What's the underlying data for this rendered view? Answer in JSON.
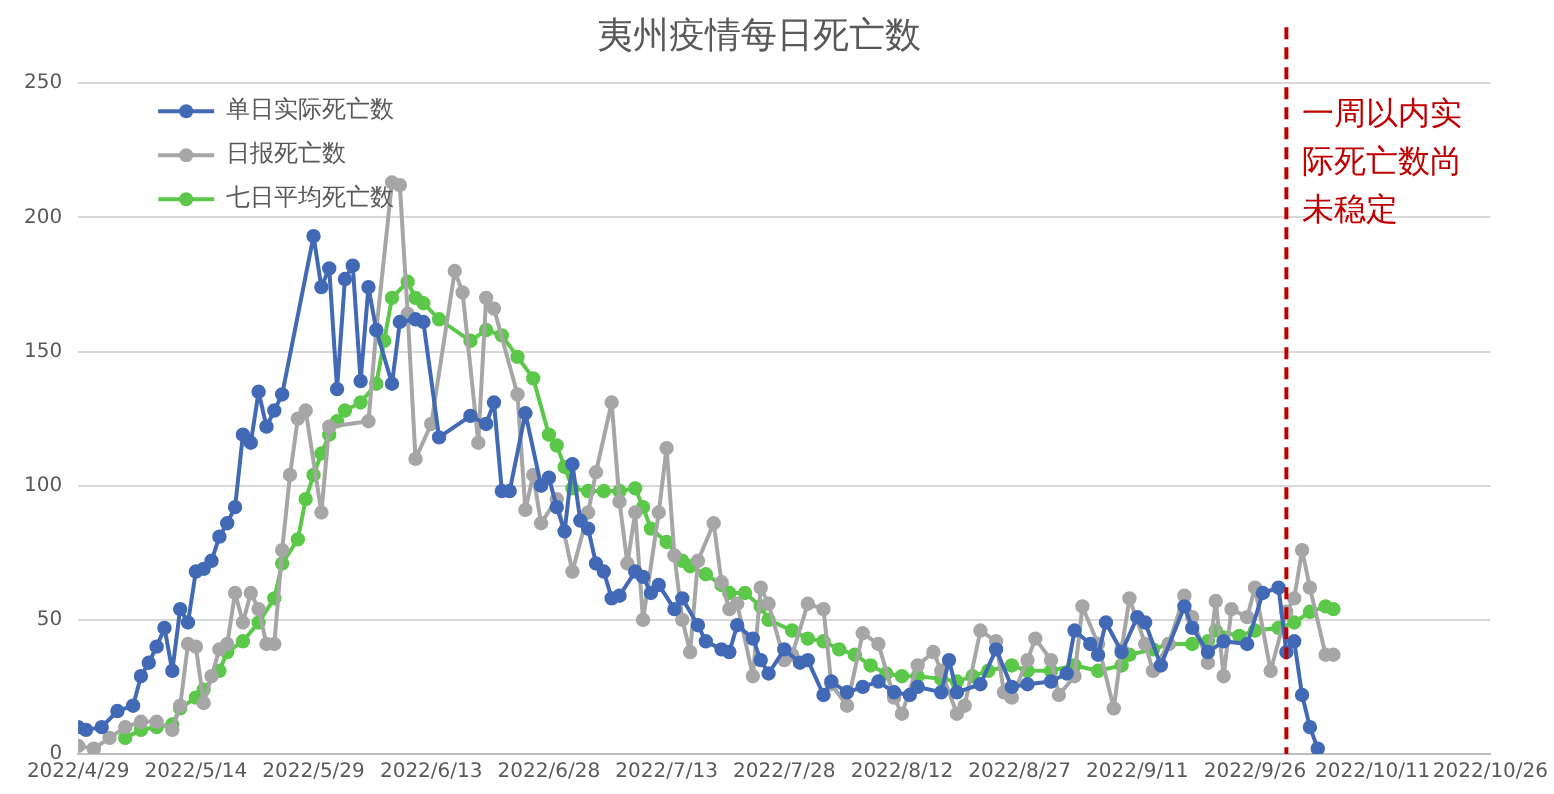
{
  "chart_data": {
    "type": "line",
    "title": "夷州疫情每日死亡数",
    "xlim": [
      "2022-04-29",
      "2022-10-26"
    ],
    "xticks": [
      {
        "value": "2022-04-29",
        "label": "2022/4/29"
      },
      {
        "value": "2022-05-14",
        "label": "2022/5/14"
      },
      {
        "value": "2022-05-29",
        "label": "2022/5/29"
      },
      {
        "value": "2022-06-13",
        "label": "2022/6/13"
      },
      {
        "value": "2022-06-28",
        "label": "2022/6/28"
      },
      {
        "value": "2022-07-13",
        "label": "2022/7/13"
      },
      {
        "value": "2022-07-28",
        "label": "2022/7/28"
      },
      {
        "value": "2022-08-12",
        "label": "2022/8/12"
      },
      {
        "value": "2022-08-27",
        "label": "2022/8/27"
      },
      {
        "value": "2022-09-11",
        "label": "2022/9/11"
      },
      {
        "value": "2022-09-26",
        "label": "2022/9/26"
      },
      {
        "value": "2022-10-11",
        "label": "2022/10/11"
      },
      {
        "value": "2022-10-26",
        "label": "2022/10/26"
      }
    ],
    "ylim": [
      0,
      250
    ],
    "yticks": [
      0,
      50,
      100,
      150,
      200,
      250
    ],
    "grid": "y",
    "legend": "top left",
    "marker": "circle",
    "line_style": "solid",
    "ref_lines": [
      {
        "axis": "x",
        "value": "2022-09-30",
        "label": "一周以内实际死亡数尚未稳定",
        "color": "#c00000",
        "line_style": "dashed"
      }
    ],
    "series": [
      {
        "name": "单日实际死亡数",
        "color": "#4169b5",
        "x": [
          "2022-04-29",
          "2022-04-30",
          "2022-05-02",
          "2022-05-04",
          "2022-05-06",
          "2022-05-07",
          "2022-05-08",
          "2022-05-09",
          "2022-05-10",
          "2022-05-11",
          "2022-05-12",
          "2022-05-13",
          "2022-05-14",
          "2022-05-15",
          "2022-05-16",
          "2022-05-17",
          "2022-05-18",
          "2022-05-19",
          "2022-05-20",
          "2022-05-21",
          "2022-05-22",
          "2022-05-23",
          "2022-05-24",
          "2022-05-25",
          "2022-05-29",
          "2022-05-30",
          "2022-05-31",
          "2022-06-01",
          "2022-06-02",
          "2022-06-03",
          "2022-06-04",
          "2022-06-05",
          "2022-06-06",
          "2022-06-08",
          "2022-06-09",
          "2022-06-11",
          "2022-06-12",
          "2022-06-14",
          "2022-06-18",
          "2022-06-20",
          "2022-06-21",
          "2022-06-22",
          "2022-06-23",
          "2022-06-25",
          "2022-06-27",
          "2022-06-28",
          "2022-06-29",
          "2022-06-30",
          "2022-07-01",
          "2022-07-02",
          "2022-07-03",
          "2022-07-04",
          "2022-07-05",
          "2022-07-06",
          "2022-07-07",
          "2022-07-09",
          "2022-07-10",
          "2022-07-11",
          "2022-07-12",
          "2022-07-14",
          "2022-07-15",
          "2022-07-17",
          "2022-07-18",
          "2022-07-20",
          "2022-07-21",
          "2022-07-22",
          "2022-07-24",
          "2022-07-25",
          "2022-07-26",
          "2022-07-28",
          "2022-07-30",
          "2022-07-31",
          "2022-08-02",
          "2022-08-03",
          "2022-08-05",
          "2022-08-07",
          "2022-08-09",
          "2022-08-11",
          "2022-08-13",
          "2022-08-14",
          "2022-08-17",
          "2022-08-18",
          "2022-08-19",
          "2022-08-22",
          "2022-08-24",
          "2022-08-26",
          "2022-08-28",
          "2022-08-31",
          "2022-09-02",
          "2022-09-03",
          "2022-09-05",
          "2022-09-06",
          "2022-09-07",
          "2022-09-09",
          "2022-09-11",
          "2022-09-12",
          "2022-09-14",
          "2022-09-17",
          "2022-09-18",
          "2022-09-20",
          "2022-09-22",
          "2022-09-25",
          "2022-09-27",
          "2022-09-29",
          "2022-09-30",
          "2022-10-01",
          "2022-10-02",
          "2022-10-03",
          "2022-10-04"
        ],
        "values": [
          10,
          9,
          10,
          16,
          18,
          29,
          34,
          40,
          47,
          31,
          54,
          49,
          68,
          69,
          72,
          81,
          86,
          92,
          119,
          116,
          135,
          122,
          128,
          134,
          193,
          174,
          181,
          136,
          177,
          182,
          139,
          174,
          158,
          138,
          161,
          162,
          161,
          118,
          126,
          123,
          131,
          98,
          98,
          127,
          100,
          103,
          92,
          83,
          108,
          87,
          84,
          71,
          68,
          58,
          59,
          68,
          66,
          60,
          63,
          54,
          58,
          48,
          42,
          39,
          38,
          48,
          43,
          35,
          30,
          39,
          34,
          35,
          22,
          27,
          23,
          25,
          27,
          23,
          22,
          25,
          23,
          35,
          23,
          26,
          39,
          25,
          26,
          27,
          30,
          46,
          41,
          37,
          49,
          38,
          51,
          49,
          33,
          55,
          47,
          38,
          42,
          41,
          60,
          62,
          38,
          42,
          22,
          10,
          2
        ]
      },
      {
        "name": "日报死亡数",
        "color": "#a6a6a6",
        "x": [
          "2022-04-29",
          "2022-05-01",
          "2022-05-03",
          "2022-05-05",
          "2022-05-07",
          "2022-05-09",
          "2022-05-11",
          "2022-05-12",
          "2022-05-13",
          "2022-05-14",
          "2022-05-15",
          "2022-05-16",
          "2022-05-17",
          "2022-05-18",
          "2022-05-19",
          "2022-05-20",
          "2022-05-21",
          "2022-05-22",
          "2022-05-23",
          "2022-05-24",
          "2022-05-25",
          "2022-05-26",
          "2022-05-27",
          "2022-05-28",
          "2022-05-30",
          "2022-05-31",
          "2022-06-05",
          "2022-06-06",
          "2022-06-08",
          "2022-06-09",
          "2022-06-10",
          "2022-06-11",
          "2022-06-13",
          "2022-06-16",
          "2022-06-17",
          "2022-06-19",
          "2022-06-20",
          "2022-06-21",
          "2022-06-24",
          "2022-06-25",
          "2022-06-26",
          "2022-06-27",
          "2022-06-29",
          "2022-07-01",
          "2022-07-03",
          "2022-07-04",
          "2022-07-06",
          "2022-07-07",
          "2022-07-08",
          "2022-07-09",
          "2022-07-10",
          "2022-07-12",
          "2022-07-13",
          "2022-07-14",
          "2022-07-15",
          "2022-07-16",
          "2022-07-17",
          "2022-07-19",
          "2022-07-20",
          "2022-07-21",
          "2022-07-22",
          "2022-07-24",
          "2022-07-25",
          "2022-07-26",
          "2022-07-28",
          "2022-07-29",
          "2022-07-31",
          "2022-08-02",
          "2022-08-03",
          "2022-08-05",
          "2022-08-07",
          "2022-08-09",
          "2022-08-11",
          "2022-08-12",
          "2022-08-14",
          "2022-08-16",
          "2022-08-17",
          "2022-08-19",
          "2022-08-20",
          "2022-08-22",
          "2022-08-24",
          "2022-08-25",
          "2022-08-26",
          "2022-08-28",
          "2022-08-29",
          "2022-08-31",
          "2022-09-01",
          "2022-09-03",
          "2022-09-04",
          "2022-09-06",
          "2022-09-08",
          "2022-09-09",
          "2022-09-10",
          "2022-09-12",
          "2022-09-13",
          "2022-09-15",
          "2022-09-17",
          "2022-09-18",
          "2022-09-20",
          "2022-09-21",
          "2022-09-22",
          "2022-09-23",
          "2022-09-25",
          "2022-09-26",
          "2022-09-28",
          "2022-09-30",
          "2022-10-01",
          "2022-10-02",
          "2022-10-03",
          "2022-10-05",
          "2022-10-06"
        ],
        "values": [
          3,
          2,
          6,
          10,
          12,
          12,
          9,
          18,
          41,
          40,
          19,
          29,
          39,
          41,
          60,
          49,
          60,
          54,
          41,
          41,
          76,
          104,
          125,
          128,
          90,
          122,
          124,
          158,
          213,
          212,
          164,
          110,
          123,
          180,
          172,
          116,
          170,
          166,
          134,
          91,
          104,
          86,
          95,
          68,
          90,
          105,
          131,
          94,
          71,
          90,
          50,
          90,
          114,
          74,
          50,
          38,
          72,
          86,
          64,
          54,
          56,
          29,
          62,
          56,
          35,
          37,
          56,
          54,
          26,
          18,
          45,
          41,
          21,
          15,
          33,
          38,
          31,
          15,
          18,
          46,
          42,
          23,
          21,
          35,
          43,
          35,
          22,
          29,
          55,
          41,
          17,
          39,
          58,
          41,
          31,
          41,
          59,
          51,
          34,
          57,
          29,
          54,
          51,
          62,
          31,
          53,
          58,
          76,
          62,
          37,
          37
        ]
      },
      {
        "name": "七日平均死亡数",
        "color": "#5cc84a",
        "x": [
          "2022-05-05",
          "2022-05-07",
          "2022-05-09",
          "2022-05-11",
          "2022-05-12",
          "2022-05-14",
          "2022-05-15",
          "2022-05-17",
          "2022-05-18",
          "2022-05-20",
          "2022-05-22",
          "2022-05-24",
          "2022-05-25",
          "2022-05-27",
          "2022-05-28",
          "2022-05-29",
          "2022-05-30",
          "2022-05-31",
          "2022-06-01",
          "2022-06-02",
          "2022-06-04",
          "2022-06-06",
          "2022-06-07",
          "2022-06-08",
          "2022-06-10",
          "2022-06-11",
          "2022-06-12",
          "2022-06-14",
          "2022-06-18",
          "2022-06-20",
          "2022-06-22",
          "2022-06-24",
          "2022-06-26",
          "2022-06-28",
          "2022-06-29",
          "2022-06-30",
          "2022-07-01",
          "2022-07-03",
          "2022-07-05",
          "2022-07-07",
          "2022-07-09",
          "2022-07-10",
          "2022-07-11",
          "2022-07-13",
          "2022-07-15",
          "2022-07-16",
          "2022-07-18",
          "2022-07-20",
          "2022-07-21",
          "2022-07-23",
          "2022-07-25",
          "2022-07-26",
          "2022-07-29",
          "2022-07-31",
          "2022-08-02",
          "2022-08-04",
          "2022-08-06",
          "2022-08-08",
          "2022-08-10",
          "2022-08-12",
          "2022-08-14",
          "2022-08-17",
          "2022-08-19",
          "2022-08-21",
          "2022-08-23",
          "2022-08-26",
          "2022-08-28",
          "2022-08-31",
          "2022-09-03",
          "2022-09-06",
          "2022-09-09",
          "2022-09-10",
          "2022-09-13",
          "2022-09-15",
          "2022-09-18",
          "2022-09-20",
          "2022-09-21",
          "2022-09-24",
          "2022-09-26",
          "2022-09-29",
          "2022-10-01",
          "2022-10-03",
          "2022-10-05",
          "2022-10-06"
        ],
        "values": [
          6,
          9,
          10,
          11,
          17,
          21,
          24,
          31,
          38,
          42,
          49,
          58,
          71,
          80,
          95,
          104,
          112,
          119,
          124,
          128,
          131,
          138,
          154,
          170,
          176,
          170,
          168,
          162,
          154,
          158,
          156,
          148,
          140,
          119,
          115,
          107,
          99,
          98,
          98,
          98,
          99,
          92,
          84,
          79,
          72,
          70,
          67,
          63,
          60,
          60,
          55,
          50,
          46,
          43,
          42,
          39,
          37,
          33,
          30,
          29,
          29,
          28,
          27,
          29,
          31,
          33,
          31,
          31,
          33,
          31,
          33,
          37,
          39,
          41,
          41,
          42,
          46,
          44,
          46,
          47,
          49,
          53,
          55,
          54
        ]
      }
    ]
  }
}
